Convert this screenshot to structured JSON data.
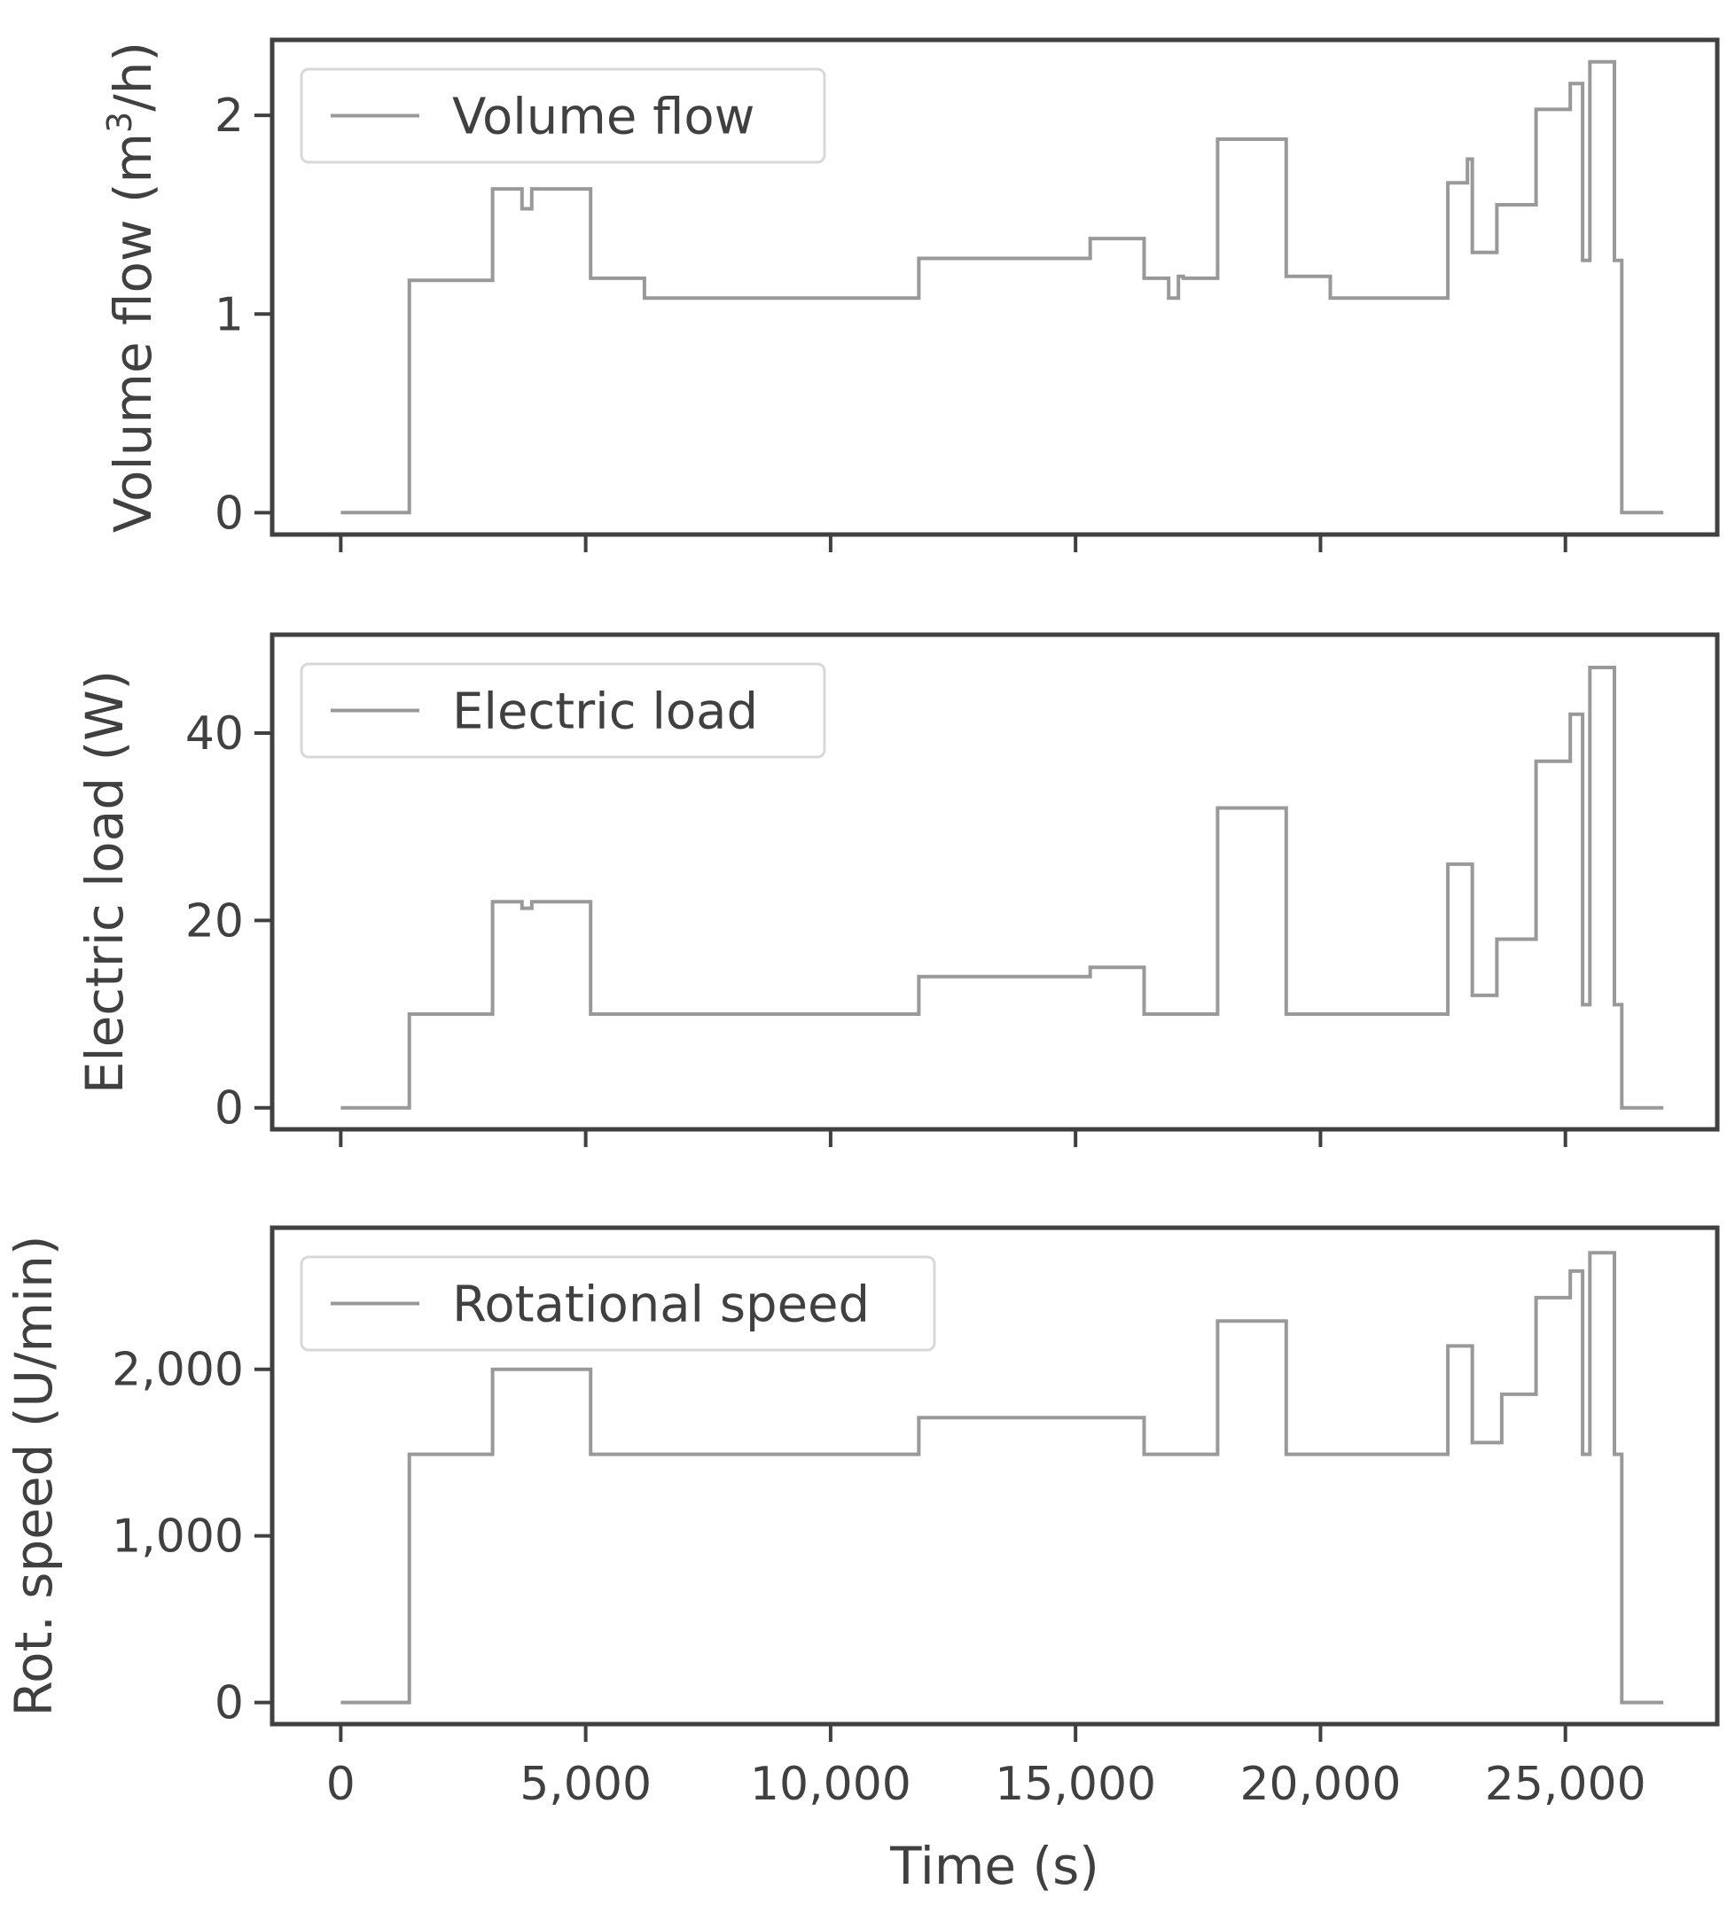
{
  "chart_data": [
    {
      "type": "line",
      "ylabel": "Volume flow (m3/h)",
      "ylabel_main": "Volume flow (m",
      "ylabel_sup": "3",
      "ylabel_tail": "/h)",
      "legend": "Volume flow",
      "legend_position": "upper-left",
      "yticks": [
        0,
        1,
        2
      ],
      "ytick_labels": [
        "0",
        "1",
        "2"
      ],
      "ylim": [
        -0.11,
        2.38
      ],
      "x": [
        0,
        1400,
        1400,
        3100,
        3100,
        3700,
        3700,
        3900,
        3900,
        5100,
        5100,
        6200,
        6200,
        11800,
        11800,
        15300,
        15300,
        16400,
        16400,
        16900,
        16900,
        17100,
        17100,
        17200,
        17200,
        17900,
        17900,
        19300,
        19300,
        20200,
        20200,
        22600,
        22600,
        23000,
        23000,
        23100,
        23100,
        23600,
        23600,
        24400,
        24400,
        25100,
        25100,
        25350,
        25350,
        25500,
        25500,
        26000,
        26000,
        26150,
        26150,
        27000
      ],
      "y": [
        0,
        0,
        1.17,
        1.17,
        1.63,
        1.63,
        1.53,
        1.53,
        1.63,
        1.63,
        1.18,
        1.18,
        1.08,
        1.08,
        1.28,
        1.28,
        1.38,
        1.38,
        1.18,
        1.18,
        1.08,
        1.08,
        1.19,
        1.19,
        1.18,
        1.18,
        1.88,
        1.88,
        1.19,
        1.19,
        1.08,
        1.08,
        1.66,
        1.66,
        1.78,
        1.78,
        1.31,
        1.31,
        1.55,
        1.55,
        2.03,
        2.03,
        2.16,
        2.16,
        1.27,
        1.27,
        2.27,
        2.27,
        1.27,
        1.27,
        0,
        0
      ]
    },
    {
      "type": "line",
      "ylabel": "Electric load (W)",
      "legend": "Electric load",
      "legend_position": "upper-left",
      "yticks": [
        0,
        20,
        40
      ],
      "ytick_labels": [
        "0",
        "20",
        "40"
      ],
      "ylim": [
        -2.3,
        50.5
      ],
      "x": [
        0,
        1400,
        1400,
        3100,
        3100,
        3700,
        3700,
        3900,
        3900,
        5100,
        5100,
        11800,
        11800,
        15300,
        15300,
        16400,
        16400,
        17900,
        17900,
        19300,
        19300,
        22600,
        22600,
        23100,
        23100,
        23600,
        23600,
        24400,
        24400,
        25100,
        25100,
        25350,
        25350,
        25500,
        25500,
        26000,
        26000,
        26150,
        26150,
        27000
      ],
      "y": [
        0,
        0,
        10,
        10,
        22,
        22,
        21.3,
        21.3,
        22,
        22,
        10,
        10,
        14,
        14,
        15,
        15,
        10,
        10,
        32,
        32,
        10,
        10,
        26,
        26,
        12,
        12,
        18,
        18,
        37,
        37,
        42,
        42,
        11,
        11,
        47,
        47,
        11,
        11,
        0,
        0
      ]
    },
    {
      "type": "line",
      "ylabel": "Rot. speed (U/min)",
      "legend": "Rotational speed",
      "legend_position": "upper-left",
      "yticks": [
        0,
        1000,
        2000
      ],
      "ytick_labels": [
        "0",
        "1,000",
        "2,000"
      ],
      "ylim": [
        -130,
        2850
      ],
      "xlabel": "Time (s)",
      "xticks": [
        0,
        5000,
        10000,
        15000,
        20000,
        25000
      ],
      "xtick_labels": [
        "0",
        "5,000",
        "10,000",
        "15,000",
        "20,000",
        "25,000"
      ],
      "xlim": [
        -1400,
        28100
      ],
      "x": [
        0,
        1400,
        1400,
        3100,
        3100,
        5100,
        5100,
        11800,
        11800,
        16400,
        16400,
        17900,
        17900,
        19300,
        19300,
        22600,
        22600,
        23100,
        23100,
        23700,
        23700,
        24400,
        24400,
        25100,
        25100,
        25350,
        25350,
        25500,
        25500,
        26000,
        26000,
        26150,
        26150,
        27000
      ],
      "y": [
        0,
        0,
        1490,
        1490,
        2000,
        2000,
        1490,
        1490,
        1710,
        1710,
        1490,
        1490,
        2290,
        2290,
        1490,
        1490,
        2140,
        2140,
        1560,
        1560,
        1850,
        1850,
        2430,
        2430,
        2590,
        2590,
        1490,
        1490,
        2700,
        2700,
        1490,
        1490,
        0,
        0
      ]
    }
  ]
}
